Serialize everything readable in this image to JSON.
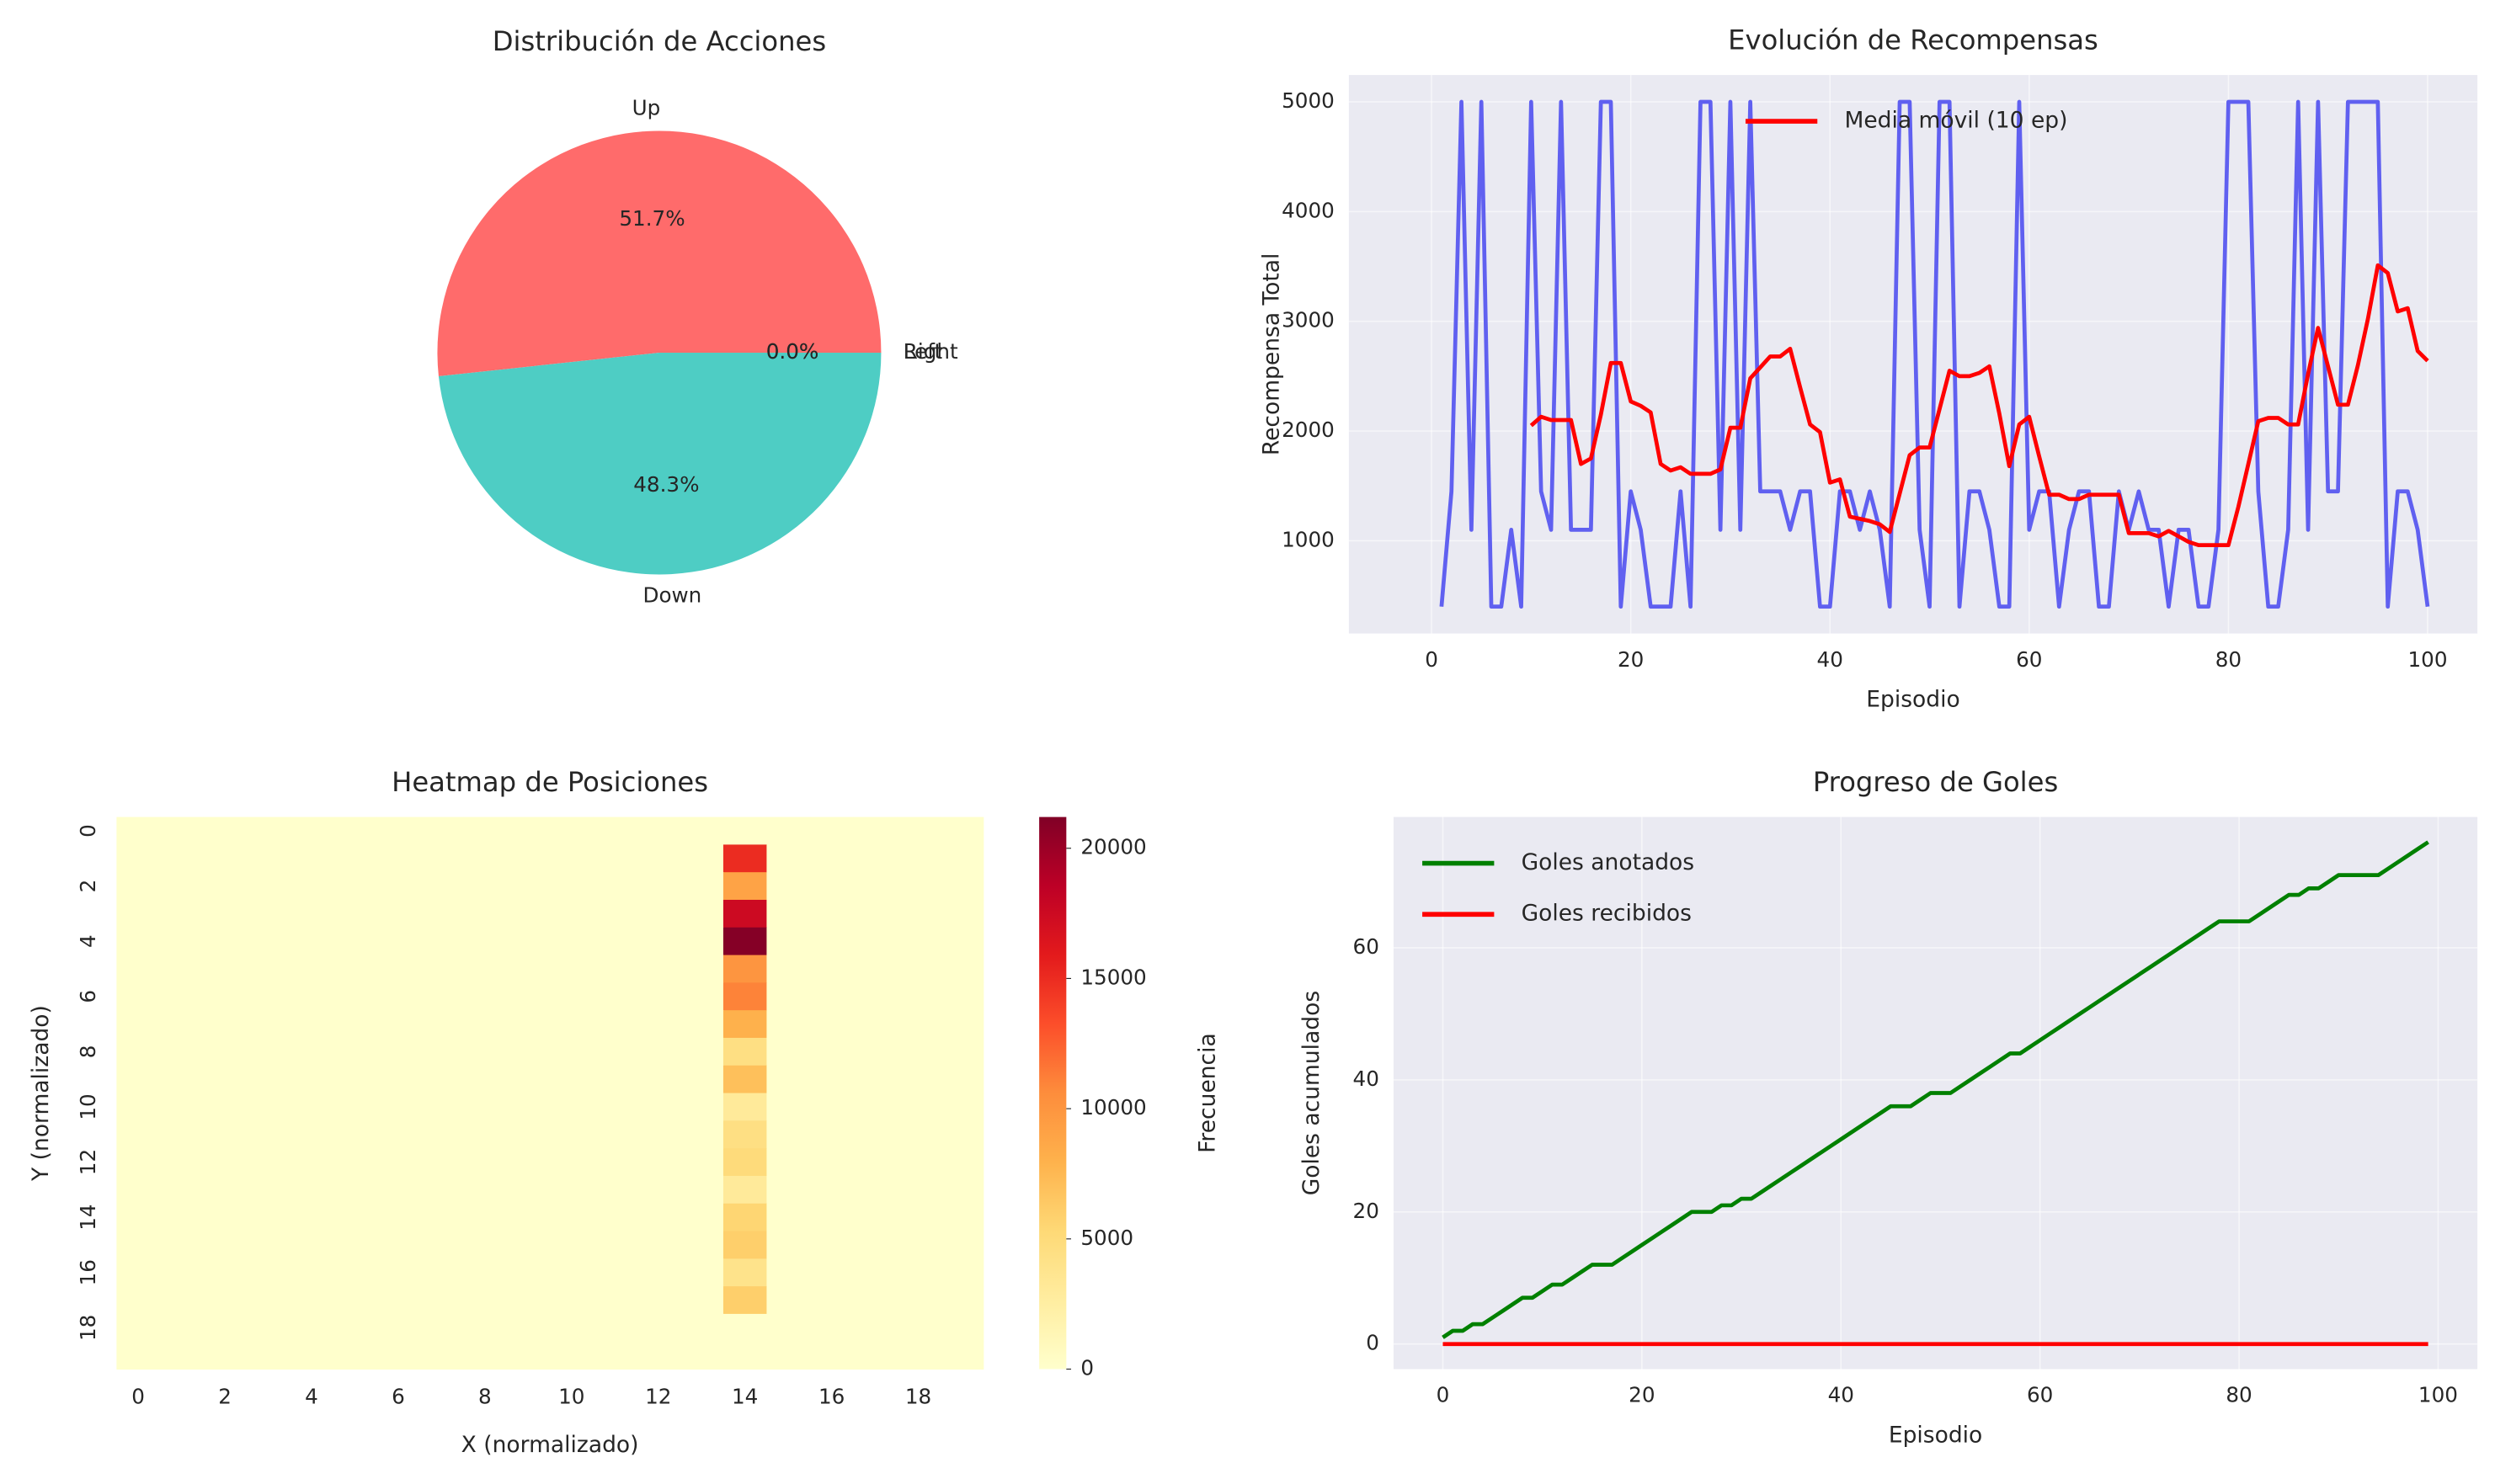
{
  "chart_data": [
    {
      "type": "pie",
      "title": "Distribución de Acciones",
      "categories": [
        "Up",
        "Down",
        "Left",
        "Right"
      ],
      "values": [
        51.7,
        48.3,
        0,
        0
      ],
      "value_labels": [
        "51.7%",
        "48.3%",
        "0.0%",
        "0.0%"
      ],
      "colors": [
        "#ff6b6b",
        "#4ecdc4",
        "#45b7d1",
        "#96ceb4"
      ]
    },
    {
      "type": "line",
      "title": "Evolución de Recompensas",
      "xlabel": "Episodio",
      "ylabel": "Recompensa Total",
      "x": [
        1,
        2,
        3,
        4,
        5,
        6,
        7,
        8,
        9,
        10,
        11,
        12,
        13,
        14,
        15,
        16,
        17,
        18,
        19,
        20,
        21,
        22,
        23,
        24,
        25,
        26,
        27,
        28,
        29,
        30,
        31,
        32,
        33,
        34,
        35,
        36,
        37,
        38,
        39,
        40,
        41,
        42,
        43,
        44,
        45,
        46,
        47,
        48,
        49,
        50,
        51,
        52,
        53,
        54,
        55,
        56,
        57,
        58,
        59,
        60,
        61,
        62,
        63,
        64,
        65,
        66,
        67,
        68,
        69,
        70,
        71,
        72,
        73,
        74,
        75,
        76,
        77,
        78,
        79,
        80,
        81,
        82,
        83,
        84,
        85,
        86,
        87,
        88,
        89,
        90,
        91,
        92,
        93,
        94,
        95,
        96,
        97,
        98,
        99,
        100
      ],
      "series": [
        {
          "color": "#6060f0",
          "values": [
            400,
            1450,
            5000,
            1100,
            5000,
            400,
            400,
            1100,
            400,
            5000,
            1450,
            1100,
            5000,
            1100,
            1100,
            1100,
            5000,
            5000,
            400,
            1450,
            1100,
            400,
            400,
            400,
            1450,
            400,
            5000,
            5000,
            1100,
            5000,
            1100,
            5000,
            1450,
            1450,
            1450,
            1100,
            1450,
            1450,
            400,
            400,
            1450,
            1450,
            1100,
            1450,
            1100,
            400,
            5000,
            5000,
            1100,
            400,
            5000,
            5000,
            400,
            1450,
            1450,
            1100,
            400,
            400,
            5000,
            1100,
            1450,
            1450,
            400,
            1100,
            1450,
            1450,
            400,
            400,
            1450,
            1100,
            1450,
            1100,
            1100,
            400,
            1100,
            1100,
            400,
            400,
            1100,
            5000,
            5000,
            5000,
            1450,
            400,
            400,
            1100,
            5000,
            1100,
            5000,
            1450,
            1450,
            5000,
            5000,
            5000,
            5000,
            400,
            1450,
            1450,
            1100,
            400
          ]
        },
        {
          "name": "Media móvil (10 ep)",
          "color": "#ff0000",
          "values": [
            null,
            null,
            null,
            null,
            null,
            null,
            null,
            null,
            null,
            2050,
            2130,
            2100,
            2100,
            2100,
            1700,
            1750,
            2150,
            2620,
            2620,
            2270,
            2230,
            2170,
            1700,
            1640,
            1670,
            1610,
            1610,
            1610,
            1650,
            2030,
            2030,
            2480,
            2580,
            2680,
            2680,
            2750,
            2400,
            2060,
            1990,
            1530,
            1560,
            1220,
            1200,
            1180,
            1150,
            1080,
            1430,
            1780,
            1850,
            1850,
            2200,
            2550,
            2500,
            2500,
            2530,
            2590,
            2160,
            1680,
            2060,
            2130,
            1770,
            1420,
            1420,
            1380,
            1380,
            1420,
            1420,
            1420,
            1420,
            1070,
            1070,
            1070,
            1040,
            1090,
            1040,
            990,
            960,
            960,
            960,
            960,
            1310,
            1700,
            2090,
            2120,
            2120,
            2060,
            2060,
            2520,
            2940,
            2590,
            2240,
            2240,
            2600,
            3020,
            3510,
            3440,
            3090,
            3120,
            2730,
            2640
          ]
        }
      ],
      "xlim": [
        -8.3,
        105
      ],
      "ylim": [
        155,
        5245
      ],
      "xticks": [
        0,
        20,
        40,
        60,
        80,
        100
      ],
      "yticks": [
        1000,
        2000,
        3000,
        4000,
        5000
      ],
      "grid": true,
      "legend": "upper center"
    },
    {
      "type": "heatmap",
      "title": "Heatmap de Posiciones",
      "xlabel": "X (normalizado)",
      "ylabel": "Y (normalizado)",
      "xticks": [
        0,
        2,
        4,
        6,
        8,
        10,
        12,
        14,
        16,
        18
      ],
      "yticks": [
        0,
        2,
        4,
        6,
        8,
        10,
        12,
        14,
        16,
        18
      ],
      "values": [
        [
          0,
          0,
          0,
          0,
          0,
          0,
          0,
          0,
          0,
          0,
          0,
          0,
          0,
          0,
          0,
          0,
          0,
          0,
          0,
          0
        ],
        [
          0,
          0,
          0,
          0,
          0,
          0,
          0,
          0,
          0,
          0,
          0,
          0,
          0,
          0,
          15000,
          0,
          0,
          0,
          0,
          0
        ],
        [
          0,
          0,
          0,
          0,
          0,
          0,
          0,
          0,
          0,
          0,
          0,
          0,
          0,
          0,
          9000,
          0,
          0,
          0,
          0,
          0
        ],
        [
          0,
          0,
          0,
          0,
          0,
          0,
          0,
          0,
          0,
          0,
          0,
          0,
          0,
          0,
          17500,
          0,
          0,
          0,
          0,
          0
        ],
        [
          0,
          0,
          0,
          0,
          0,
          0,
          0,
          0,
          0,
          0,
          0,
          0,
          0,
          0,
          21000,
          0,
          0,
          0,
          0,
          0
        ],
        [
          0,
          0,
          0,
          0,
          0,
          0,
          0,
          0,
          0,
          0,
          0,
          0,
          0,
          0,
          10000,
          0,
          0,
          0,
          0,
          0
        ],
        [
          0,
          0,
          0,
          0,
          0,
          0,
          0,
          0,
          0,
          0,
          0,
          0,
          0,
          0,
          11000,
          0,
          0,
          0,
          0,
          0
        ],
        [
          0,
          0,
          0,
          0,
          0,
          0,
          0,
          0,
          0,
          0,
          0,
          0,
          0,
          0,
          8000,
          0,
          0,
          0,
          0,
          0
        ],
        [
          0,
          0,
          0,
          0,
          0,
          0,
          0,
          0,
          0,
          0,
          0,
          0,
          0,
          0,
          4500,
          0,
          0,
          0,
          0,
          0
        ],
        [
          0,
          0,
          0,
          0,
          0,
          0,
          0,
          0,
          0,
          0,
          0,
          0,
          0,
          0,
          7000,
          0,
          0,
          0,
          0,
          0
        ],
        [
          0,
          0,
          0,
          0,
          0,
          0,
          0,
          0,
          0,
          0,
          0,
          0,
          0,
          0,
          3000,
          0,
          0,
          0,
          0,
          0
        ],
        [
          0,
          0,
          0,
          0,
          0,
          0,
          0,
          0,
          0,
          0,
          0,
          0,
          0,
          0,
          4500,
          0,
          0,
          0,
          0,
          0
        ],
        [
          0,
          0,
          0,
          0,
          0,
          0,
          0,
          0,
          0,
          0,
          0,
          0,
          0,
          0,
          5000,
          0,
          0,
          0,
          0,
          0
        ],
        [
          0,
          0,
          0,
          0,
          0,
          0,
          0,
          0,
          0,
          0,
          0,
          0,
          0,
          0,
          3000,
          0,
          0,
          0,
          0,
          0
        ],
        [
          0,
          0,
          0,
          0,
          0,
          0,
          0,
          0,
          0,
          0,
          0,
          0,
          0,
          0,
          5500,
          0,
          0,
          0,
          0,
          0
        ],
        [
          0,
          0,
          0,
          0,
          0,
          0,
          0,
          0,
          0,
          0,
          0,
          0,
          0,
          0,
          6000,
          0,
          0,
          0,
          0,
          0
        ],
        [
          0,
          0,
          0,
          0,
          0,
          0,
          0,
          0,
          0,
          0,
          0,
          0,
          0,
          0,
          4000,
          0,
          0,
          0,
          0,
          0
        ],
        [
          0,
          0,
          0,
          0,
          0,
          0,
          0,
          0,
          0,
          0,
          0,
          0,
          0,
          0,
          6000,
          0,
          0,
          0,
          0,
          0
        ],
        [
          0,
          0,
          0,
          0,
          0,
          0,
          0,
          0,
          0,
          0,
          0,
          0,
          0,
          0,
          0,
          0,
          0,
          0,
          0,
          0
        ],
        [
          0,
          0,
          0,
          0,
          0,
          0,
          0,
          0,
          0,
          0,
          0,
          0,
          0,
          0,
          0,
          0,
          0,
          0,
          0,
          0
        ]
      ],
      "colormap": "YlOrRd",
      "colorbar_label": "Frecuencia",
      "zlim": [
        0,
        21200
      ],
      "zticks": [
        0,
        5000,
        10000,
        15000,
        20000
      ]
    },
    {
      "type": "line",
      "title": "Progreso de Goles",
      "xlabel": "Episodio",
      "ylabel": "Goles acumulados",
      "x": [
        0,
        1,
        2,
        3,
        4,
        5,
        6,
        7,
        8,
        9,
        10,
        11,
        12,
        13,
        14,
        15,
        16,
        17,
        18,
        19,
        20,
        21,
        22,
        23,
        24,
        25,
        26,
        27,
        28,
        29,
        30,
        31,
        32,
        33,
        34,
        35,
        36,
        37,
        38,
        39,
        40,
        41,
        42,
        43,
        44,
        45,
        46,
        47,
        48,
        49,
        50,
        51,
        52,
        53,
        54,
        55,
        56,
        57,
        58,
        59,
        60,
        61,
        62,
        63,
        64,
        65,
        66,
        67,
        68,
        69,
        70,
        71,
        72,
        73,
        74,
        75,
        76,
        77,
        78,
        79,
        80,
        81,
        82,
        83,
        84,
        85,
        86,
        87,
        88,
        89,
        90,
        91,
        92,
        93,
        94,
        95,
        96,
        97,
        98,
        99
      ],
      "series": [
        {
          "name": "Goles anotados",
          "color": "#008000",
          "values": [
            1,
            2,
            2,
            3,
            3,
            4,
            5,
            6,
            7,
            7,
            8,
            9,
            9,
            10,
            11,
            12,
            12,
            12,
            13,
            14,
            15,
            16,
            17,
            18,
            19,
            20,
            20,
            20,
            21,
            21,
            22,
            22,
            23,
            24,
            25,
            26,
            27,
            28,
            29,
            30,
            31,
            32,
            33,
            34,
            35,
            36,
            36,
            36,
            37,
            38,
            38,
            38,
            39,
            40,
            41,
            42,
            43,
            44,
            44,
            45,
            46,
            47,
            48,
            49,
            50,
            51,
            52,
            53,
            54,
            55,
            56,
            57,
            58,
            59,
            60,
            61,
            62,
            63,
            64,
            64,
            64,
            64,
            65,
            66,
            67,
            68,
            68,
            69,
            69,
            70,
            71,
            71,
            71,
            71,
            71,
            72,
            73,
            74,
            75,
            76
          ]
        },
        {
          "name": "Goles recibidos",
          "color": "#ff0000",
          "values": [
            0,
            0,
            0,
            0,
            0,
            0,
            0,
            0,
            0,
            0,
            0,
            0,
            0,
            0,
            0,
            0,
            0,
            0,
            0,
            0,
            0,
            0,
            0,
            0,
            0,
            0,
            0,
            0,
            0,
            0,
            0,
            0,
            0,
            0,
            0,
            0,
            0,
            0,
            0,
            0,
            0,
            0,
            0,
            0,
            0,
            0,
            0,
            0,
            0,
            0,
            0,
            0,
            0,
            0,
            0,
            0,
            0,
            0,
            0,
            0,
            0,
            0,
            0,
            0,
            0,
            0,
            0,
            0,
            0,
            0,
            0,
            0,
            0,
            0,
            0,
            0,
            0,
            0,
            0,
            0,
            0,
            0,
            0,
            0,
            0,
            0,
            0,
            0,
            0,
            0,
            0,
            0,
            0,
            0,
            0,
            0,
            0,
            0,
            0,
            0
          ]
        }
      ],
      "xlim": [
        -4.95,
        103.95
      ],
      "ylim": [
        -3.8,
        79.8
      ],
      "xticks": [
        0,
        20,
        40,
        60,
        80,
        100
      ],
      "yticks": [
        0,
        20,
        40,
        60
      ],
      "grid": true,
      "legend": "upper left"
    }
  ]
}
